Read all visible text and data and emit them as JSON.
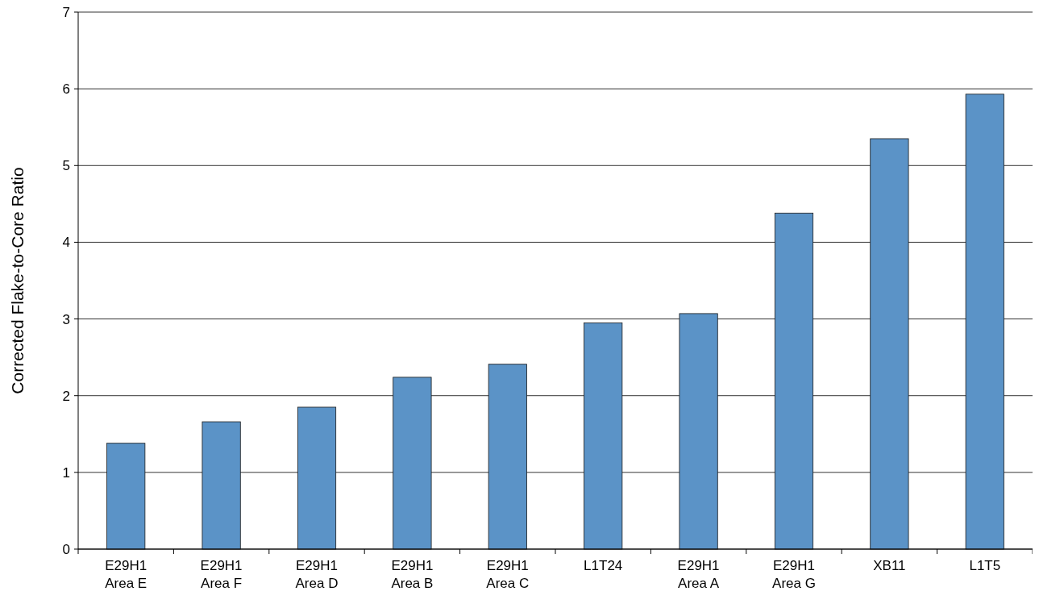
{
  "chart_data": {
    "type": "bar",
    "ylabel": "Corrected Flake-to-Core Ratio",
    "categories": [
      "E29H1\nArea E",
      "E29H1\nArea F",
      "E29H1\nArea D",
      "E29H1\nArea B",
      "E29H1\nArea C",
      "L1T24",
      "E29H1\nArea A",
      "E29H1\nArea G",
      "XB11",
      "L1T5"
    ],
    "values": [
      1.38,
      1.66,
      1.85,
      2.24,
      2.41,
      2.95,
      3.07,
      4.38,
      5.35,
      5.93
    ],
    "color": "#5b93c7",
    "ylim": [
      0,
      7
    ],
    "yticks": [
      0,
      1,
      2,
      3,
      4,
      5,
      6,
      7
    ],
    "grid": "y"
  }
}
